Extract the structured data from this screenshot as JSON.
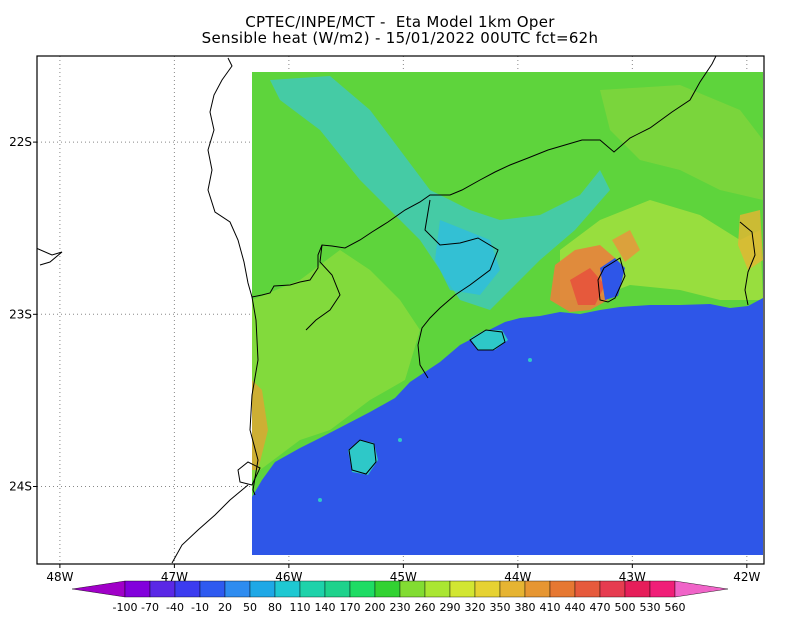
{
  "title": {
    "line1": "CPTEC/INPE/MCT -  Eta Model 1km Oper",
    "line2": "Sensible heat (W/m2) - 15/01/2022 00UTC fct=62h"
  },
  "map": {
    "lon_ticks": [
      {
        "value": -48,
        "label": "48W"
      },
      {
        "value": -47,
        "label": "47W"
      },
      {
        "value": -46,
        "label": "46W"
      },
      {
        "value": -45,
        "label": "45W"
      },
      {
        "value": -44,
        "label": "44W"
      },
      {
        "value": -43,
        "label": "43W"
      },
      {
        "value": -42,
        "label": "42W"
      }
    ],
    "lat_ticks": [
      {
        "value": -22,
        "label": "22S"
      },
      {
        "value": -23,
        "label": "23S"
      },
      {
        "value": -24,
        "label": "24S"
      }
    ],
    "lon_range": [
      -48.2,
      -41.85
    ],
    "lat_range": [
      -24.45,
      -21.5
    ],
    "colors": {
      "ocean": "#2e56e8",
      "land_base": "#5ed43c",
      "river_valley": "#3ec8c8",
      "warm_coast": "#e8823c"
    }
  },
  "colorbar": {
    "labels": [
      "-100",
      "-70",
      "-40",
      "-10",
      "20",
      "50",
      "80",
      "110",
      "140",
      "170",
      "200",
      "230",
      "260",
      "290",
      "320",
      "350",
      "380",
      "410",
      "440",
      "470",
      "500",
      "530",
      "560"
    ],
    "colors": [
      "#a000c8",
      "#8200dc",
      "#5a28e6",
      "#3c3cf0",
      "#2e5af0",
      "#2e8cf0",
      "#1ea8e6",
      "#1ec8d2",
      "#1ed2aa",
      "#1ed28c",
      "#1edc64",
      "#32d232",
      "#82dc32",
      "#aae632",
      "#d2e632",
      "#e6d232",
      "#e6b432",
      "#e69632",
      "#e67832",
      "#e65a3c",
      "#e63c50",
      "#e61e5a",
      "#f01e78",
      "#f064c8"
    ]
  }
}
